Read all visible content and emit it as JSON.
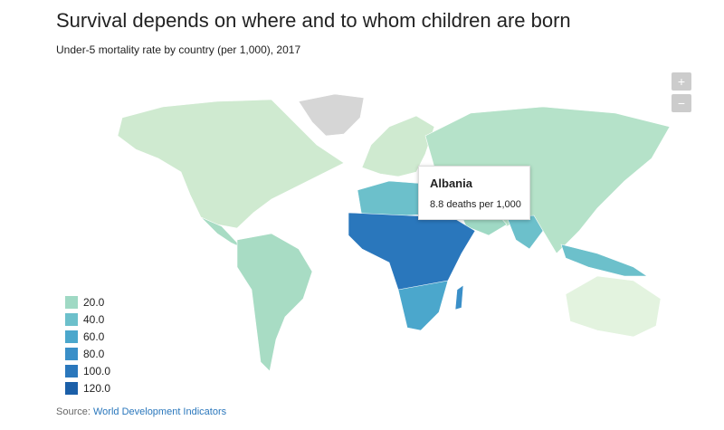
{
  "header": {
    "title": "Survival depends on where and to whom children are born",
    "subtitle": "Under-5 mortality rate by country (per 1,000), 2017"
  },
  "zoom": {
    "in": "+",
    "out": "−"
  },
  "legend": [
    {
      "label": "20.0",
      "color": "#9fd9c4"
    },
    {
      "label": "40.0",
      "color": "#6cc0cb"
    },
    {
      "label": "60.0",
      "color": "#4ba7cc"
    },
    {
      "label": "80.0",
      "color": "#3a8fc8"
    },
    {
      "label": "100.0",
      "color": "#2a77bc"
    },
    {
      "label": "120.0",
      "color": "#1b5fa8"
    }
  ],
  "tooltip": {
    "title": "Albania",
    "text": "8.8 deaths per 1,000"
  },
  "source": {
    "prefix": "Source:",
    "link": "World Development Indicators"
  }
}
